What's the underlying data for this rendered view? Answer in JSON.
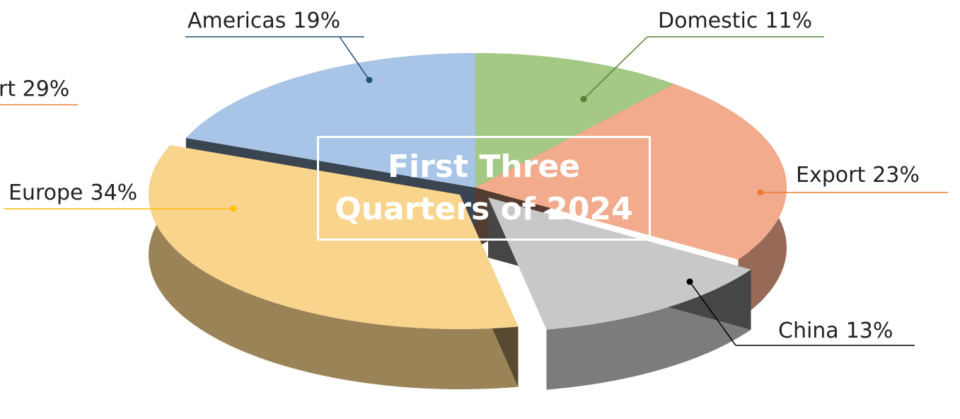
{
  "chart_data": {
    "type": "pie",
    "title": "First Three Quarters of 2024",
    "categories": [
      "Domestic",
      "Export",
      "China",
      "Europe",
      "Americas"
    ],
    "values": [
      11,
      23,
      13,
      34,
      19
    ],
    "value_labels": [
      "11%",
      "23%",
      "13%",
      "34%",
      "19%"
    ],
    "colors": [
      "#a3c985",
      "#f2ab8c",
      "#c8c8c8",
      "#f9d48c",
      "#a8c4e6"
    ],
    "annotations": [
      "rt 29%"
    ]
  }
}
